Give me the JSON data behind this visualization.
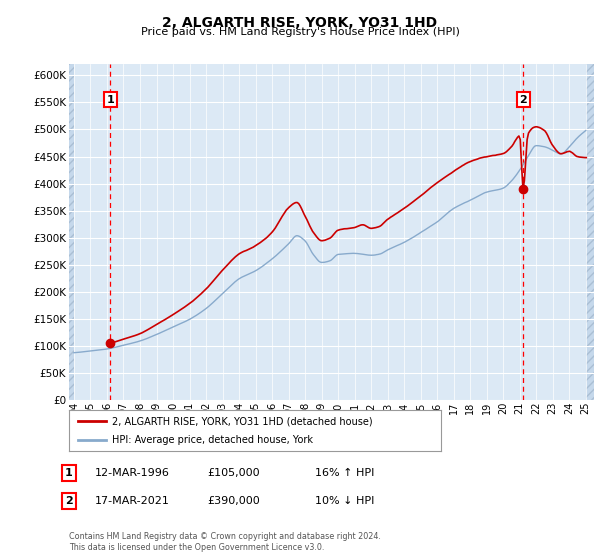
{
  "title": "2, ALGARTH RISE, YORK, YO31 1HD",
  "subtitle": "Price paid vs. HM Land Registry's House Price Index (HPI)",
  "ylim": [
    0,
    620000
  ],
  "yticks": [
    0,
    50000,
    100000,
    150000,
    200000,
    250000,
    300000,
    350000,
    400000,
    450000,
    500000,
    550000,
    600000
  ],
  "xlim_start": 1993.7,
  "xlim_end": 2025.5,
  "plot_bg_color": "#dce9f5",
  "hatch_color": "#c5d8eb",
  "grid_color": "#ffffff",
  "sale1_x": 1996.2,
  "sale1_price": 105000,
  "sale2_x": 2021.21,
  "sale2_price": 390000,
  "legend_line1": "2, ALGARTH RISE, YORK, YO31 1HD (detached house)",
  "legend_line2": "HPI: Average price, detached house, York",
  "annotation1_label": "1",
  "annotation1_date": "12-MAR-1996",
  "annotation1_price": "£105,000",
  "annotation1_hpi": "16% ↑ HPI",
  "annotation2_label": "2",
  "annotation2_date": "17-MAR-2021",
  "annotation2_price": "£390,000",
  "annotation2_hpi": "10% ↓ HPI",
  "copyright_text": "Contains HM Land Registry data © Crown copyright and database right 2024.\nThis data is licensed under the Open Government Licence v3.0.",
  "line_red_color": "#cc0000",
  "line_blue_color": "#88aacc"
}
